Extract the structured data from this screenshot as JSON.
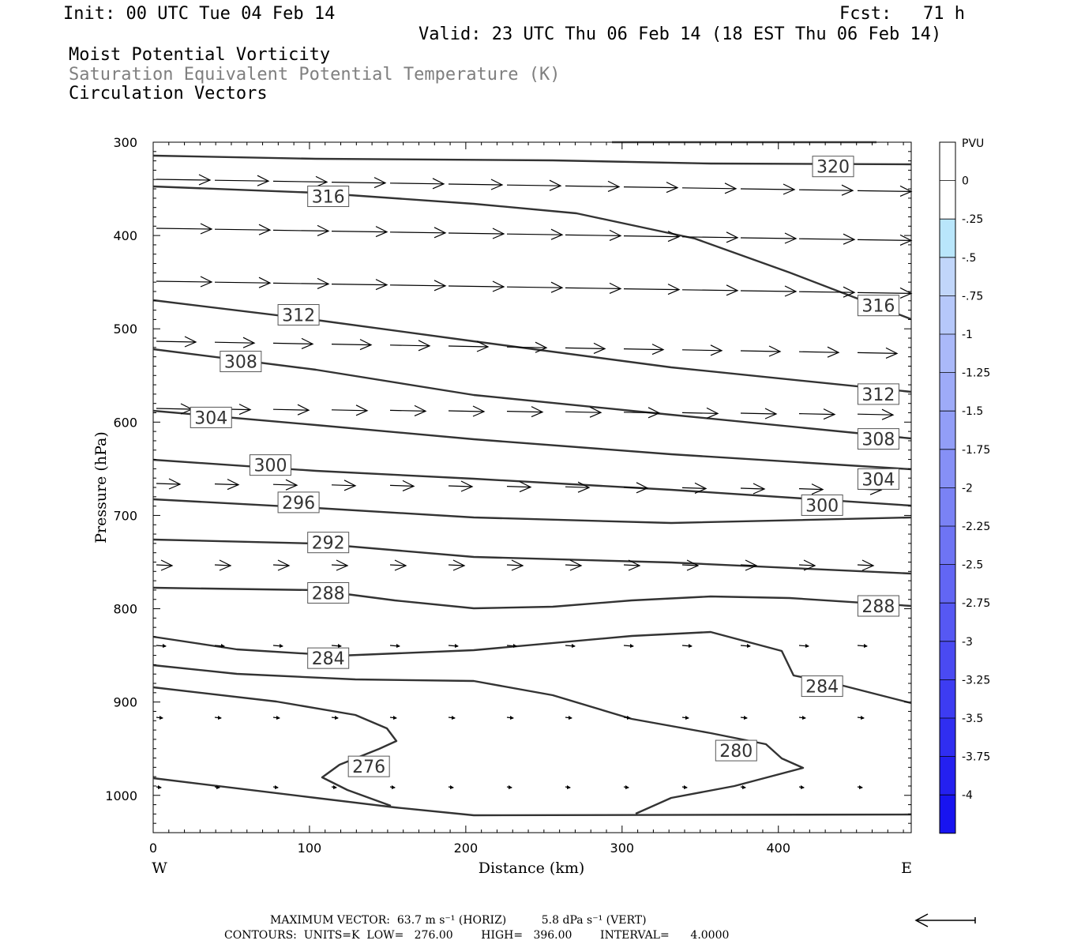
{
  "header": {
    "init": "Init: 00 UTC Tue 04 Feb 14",
    "fcst": "Fcst:   71 h",
    "valid": "Valid: 23 UTC Thu 06 Feb 14 (18 EST Thu 06 Feb 14)",
    "field1": "Moist Potential Vorticity",
    "field2": "Saturation Equivalent Potential Temperature (K)",
    "field3": "Circulation Vectors"
  },
  "chart_data": {
    "type": "contour-cross-section",
    "xlabel": "Distance (km)",
    "ylabel": "Pressure (hPa)",
    "xlim": [
      0,
      485
    ],
    "ylim": [
      1040,
      300
    ],
    "x_ticks": [
      "0",
      "100",
      "200",
      "300",
      "400"
    ],
    "y_ticks": [
      "300",
      "400",
      "500",
      "600",
      "700",
      "800",
      "900",
      "1000"
    ],
    "x_end_labels": {
      "left": "W",
      "right": "E"
    },
    "contour_labels": [
      {
        "text": "320",
        "x": 435,
        "p": 326
      },
      {
        "text": "316",
        "x": 112,
        "p": 358
      },
      {
        "text": "316",
        "x": 464,
        "p": 475
      },
      {
        "text": "312",
        "x": 93,
        "p": 485
      },
      {
        "text": "312",
        "x": 464,
        "p": 570
      },
      {
        "text": "308",
        "x": 56,
        "p": 535
      },
      {
        "text": "308",
        "x": 464,
        "p": 618
      },
      {
        "text": "304",
        "x": 37,
        "p": 595
      },
      {
        "text": "304",
        "x": 464,
        "p": 661
      },
      {
        "text": "300",
        "x": 75,
        "p": 646
      },
      {
        "text": "300",
        "x": 428,
        "p": 689
      },
      {
        "text": "296",
        "x": 93,
        "p": 686
      },
      {
        "text": "292",
        "x": 112,
        "p": 729
      },
      {
        "text": "288",
        "x": 112,
        "p": 783
      },
      {
        "text": "288",
        "x": 464,
        "p": 797
      },
      {
        "text": "284",
        "x": 112,
        "p": 853
      },
      {
        "text": "284",
        "x": 428,
        "p": 883
      },
      {
        "text": "280",
        "x": 373,
        "p": 952
      },
      {
        "text": "276",
        "x": 138,
        "p": 969
      }
    ],
    "colorbar": {
      "title": "PVU",
      "labels": [
        "0",
        "-.25",
        "-.5",
        "-.75",
        "-1",
        "-1.25",
        "-1.5",
        "-1.75",
        "-2",
        "-2.25",
        "-2.5",
        "-2.75",
        "-3",
        "-3.25",
        "-3.5",
        "-3.75",
        "-4"
      ],
      "colors": [
        "#ffffff",
        "#ffffff",
        "#b9e6fb",
        "#c1d6fa",
        "#b6c8fa",
        "#aab9f9",
        "#9eabf8",
        "#929ef7",
        "#8690f6",
        "#7a82f5",
        "#6e74f4",
        "#6266f4",
        "#5658f3",
        "#4a4af2",
        "#3d3cf2",
        "#302ef1",
        "#2420f0",
        "#1814f0"
      ]
    },
    "vector_rows_hPa": [
      340,
      390,
      452,
      515,
      585,
      665,
      752,
      838,
      915,
      990
    ],
    "grid": false
  },
  "footer": {
    "line1": "MAXIMUM VECTOR:  63.7 m s⁻¹ (HORIZ)          5.8 dPa s⁻¹ (VERT)",
    "line2": "CONTOURS:  UNITS=K  LOW=   276.00        HIGH=   396.00        INTERVAL=      4.0000"
  }
}
